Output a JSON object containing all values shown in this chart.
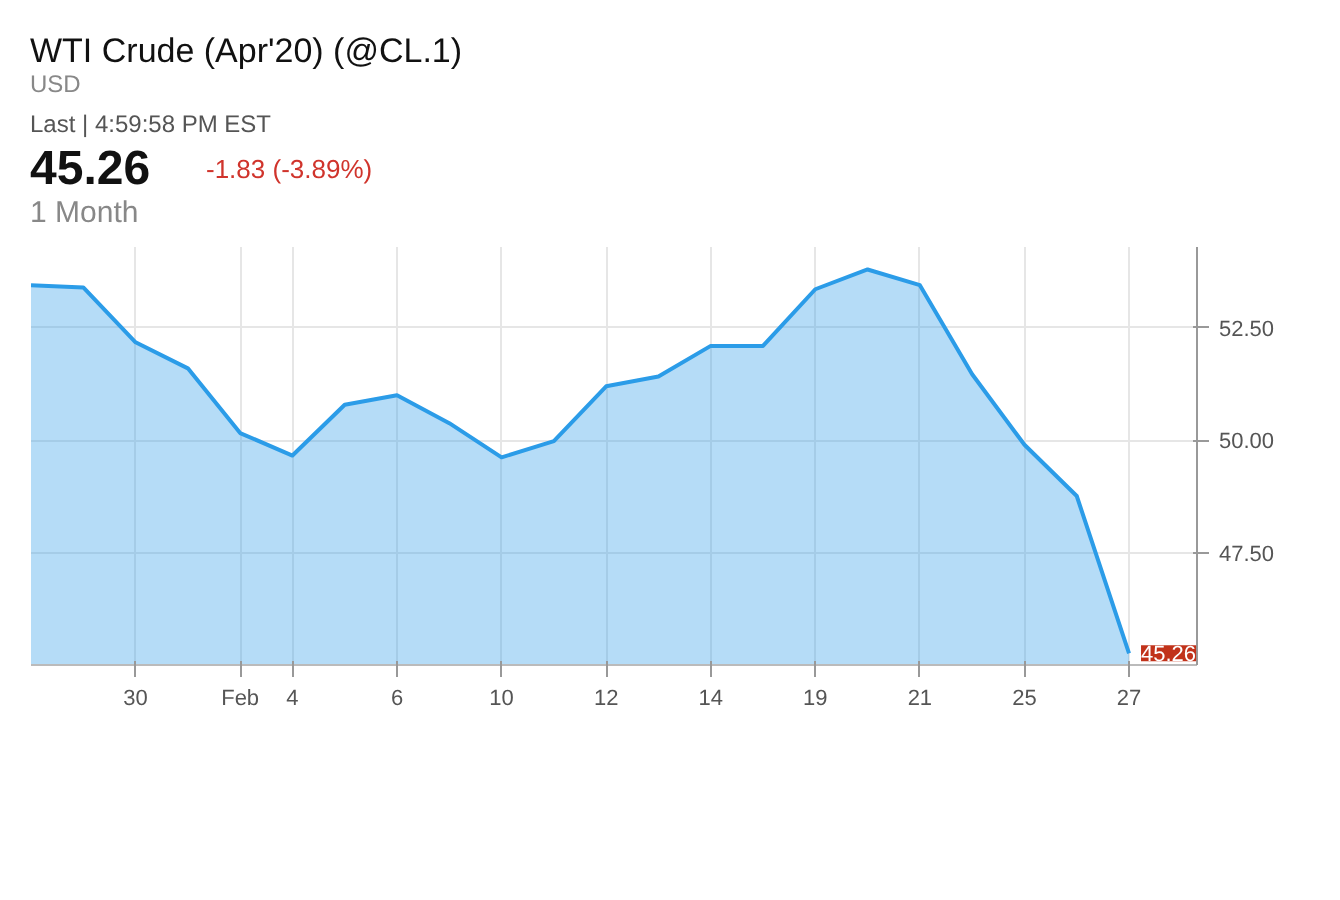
{
  "chart_data": {
    "type": "area",
    "title": "WTI Crude (Apr'20) (@CL.1)",
    "subtitle": "USD",
    "annotations": [
      "Last | 4:59:58 PM EST",
      "45.26",
      "-1.83 (-3.89%)",
      "1 Month",
      {
        "text": "45.26",
        "x": "27",
        "y": 45.26
      }
    ],
    "categories": [
      null,
      null,
      "30",
      null,
      "Feb",
      "4",
      null,
      "6",
      null,
      "10",
      null,
      "12",
      null,
      "14",
      null,
      "19",
      null,
      "21",
      null,
      "25",
      null,
      "27"
    ],
    "series": [
      {
        "color": "#2b9ce8",
        "values": [
          53.45,
          53.4,
          52.18,
          51.6,
          50.16,
          49.66,
          50.79,
          51.0,
          50.38,
          49.62,
          49.98,
          51.2,
          51.42,
          52.1,
          52.1,
          53.36,
          53.8,
          53.45,
          51.47,
          49.9,
          48.76,
          45.26
        ]
      }
    ],
    "ylim": [
      45.0,
      54.3
    ],
    "yticks": [
      {
        "value": 47.5,
        "label": "47.50"
      },
      {
        "value": 50,
        "label": "50.00"
      },
      {
        "value": 52.5,
        "label": "52.50"
      }
    ],
    "grid": true
  }
}
